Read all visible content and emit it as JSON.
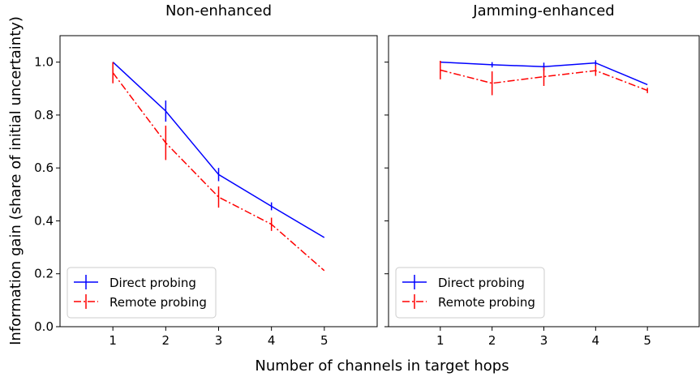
{
  "chart_data": {
    "type": "line",
    "shared_xlabel": "Number of channels in target hops",
    "shared_ylabel": "Information gain (share of initial uncertainty)",
    "xlim": [
      0.0,
      6.0
    ],
    "ylim": [
      0.0,
      1.1
    ],
    "x_ticks": [
      1,
      2,
      3,
      4,
      5
    ],
    "y_ticks": [
      "0.0",
      "0.2",
      "0.4",
      "0.6",
      "0.8",
      "1.0"
    ],
    "grid": false,
    "legend_placement": "lower-left",
    "panels": [
      {
        "title": "Non-enhanced",
        "x": [
          1,
          2,
          3,
          4,
          5
        ],
        "series": [
          {
            "name": "Direct probing",
            "color": "#0000ff",
            "line_style": "solid",
            "values": [
              1.0,
              0.815,
              0.575,
              0.455,
              0.337
            ],
            "errors": [
              0.0,
              0.04,
              0.025,
              0.015,
              0.0
            ]
          },
          {
            "name": "Remote probing",
            "color": "#ff0000",
            "line_style": "dashdot",
            "values": [
              0.96,
              0.695,
              0.49,
              0.387,
              0.212
            ],
            "errors": [
              0.04,
              0.065,
              0.04,
              0.025,
              0.0
            ]
          }
        ]
      },
      {
        "title": "Jamming-enhanced",
        "x": [
          1,
          2,
          3,
          4,
          5
        ],
        "series": [
          {
            "name": "Direct probing",
            "color": "#0000ff",
            "line_style": "solid",
            "values": [
              1.0,
              0.99,
              0.983,
              0.997,
              0.915
            ],
            "errors": [
              0.0,
              0.01,
              0.015,
              0.01,
              0.0
            ]
          },
          {
            "name": "Remote probing",
            "color": "#ff0000",
            "line_style": "dashdot",
            "values": [
              0.97,
              0.92,
              0.945,
              0.968,
              0.893
            ],
            "errors": [
              0.035,
              0.045,
              0.035,
              0.02,
              0.01
            ]
          }
        ]
      }
    ]
  }
}
